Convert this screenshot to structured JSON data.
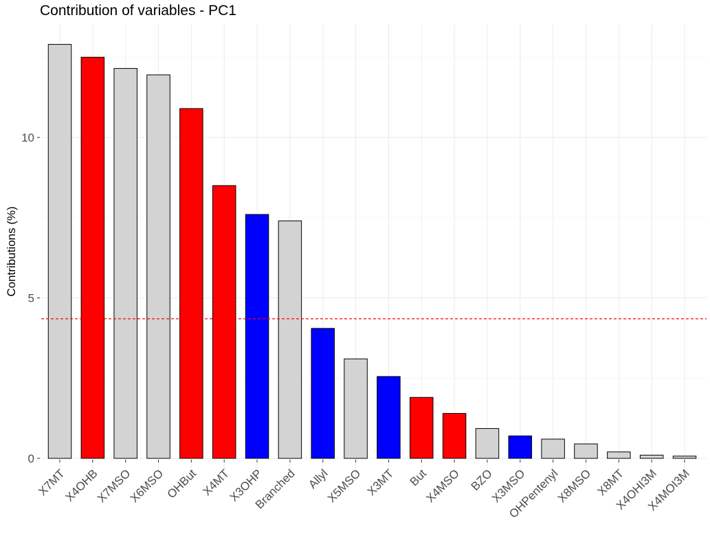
{
  "chart_data": {
    "type": "bar",
    "title": "Contribution of variables - PC1",
    "xlabel": "",
    "ylabel": "Contributions (%)",
    "ylim": [
      -0.7,
      13.9
    ],
    "yticks": [
      0,
      5,
      10
    ],
    "grid": true,
    "reference_line": {
      "value": 4.35,
      "color": "#ff0000",
      "style": "dashed"
    },
    "categories": [
      "X7MT",
      "X4OHB",
      "X7MSO",
      "X6MSO",
      "OHBut",
      "X4MT",
      "X3OHP",
      "Branched",
      "Allyl",
      "X5MSO",
      "X3MT",
      "But",
      "X4MSO",
      "BZO",
      "X3MSO",
      "OHPentenyl",
      "X8MSO",
      "X8MT",
      "X4OHI3M",
      "X4MOI3M"
    ],
    "values": [
      12.9,
      12.5,
      12.15,
      11.95,
      10.9,
      8.5,
      7.6,
      7.4,
      4.05,
      3.1,
      2.55,
      1.9,
      1.4,
      0.93,
      0.7,
      0.6,
      0.45,
      0.2,
      0.1,
      0.07
    ],
    "colors": [
      "#d3d3d3",
      "#ff0000",
      "#d3d3d3",
      "#d3d3d3",
      "#ff0000",
      "#ff0000",
      "#0000ff",
      "#d3d3d3",
      "#0000ff",
      "#d3d3d3",
      "#0000ff",
      "#ff0000",
      "#ff0000",
      "#d3d3d3",
      "#0000ff",
      "#d3d3d3",
      "#d3d3d3",
      "#d3d3d3",
      "#d3d3d3",
      "#d3d3d3"
    ]
  }
}
